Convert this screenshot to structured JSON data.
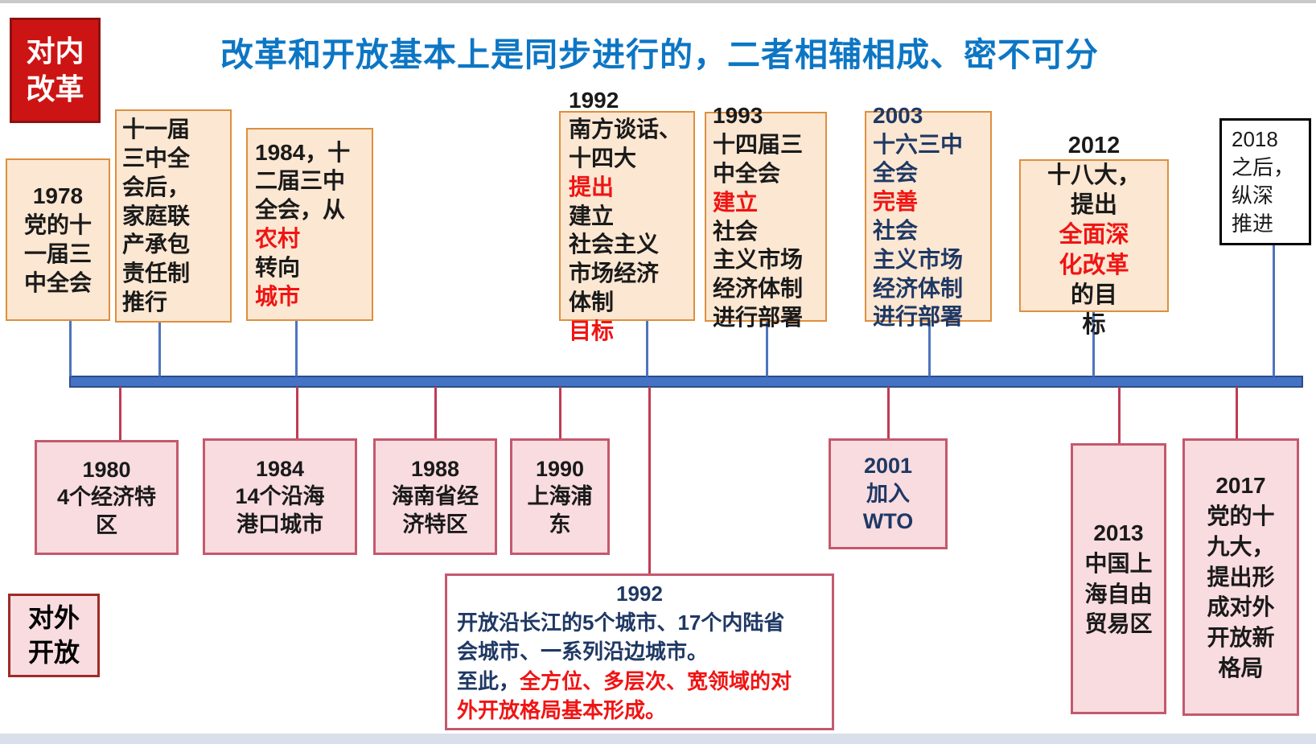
{
  "header": {
    "internal_reform_label": "对内\n改革",
    "external_opening_label": "对外\n开放",
    "title": "改革和开放基本上是同步进行的，二者相辅相成、密不可分"
  },
  "colors": {
    "title_blue": "#0d76c4",
    "highlight_red": "#f01414",
    "navy_text": "#1f3864",
    "timeline_bar": "#4472c4",
    "upper_box_fill": "#fbe7d2",
    "upper_box_border": "#de8f3e",
    "lower_box_fill": "#f8dce0",
    "lower_box_border": "#c4596d"
  },
  "timeline": {
    "upper": {
      "event_1978": {
        "segments": [
          {
            "t": "1978\n党的十\n一届三\n中全会"
          }
        ]
      },
      "event_plenum_aftermath": {
        "segments": [
          {
            "t": "十一届\n三中全\n会后，\n家庭联\n产承包\n责任制\n推行"
          }
        ]
      },
      "event_1984": {
        "segments": [
          {
            "t": "1984，十\n二届三中\n全会，从\n"
          },
          {
            "t": "农村",
            "c": "red"
          },
          {
            "t": "转向\n"
          },
          {
            "t": "城市",
            "c": "red"
          }
        ]
      },
      "event_1992": {
        "segments": [
          {
            "t": "1992\n南方谈话、\n十四大\n"
          },
          {
            "t": "提出",
            "c": "red"
          },
          {
            "t": "建立\n社会主义\n市场经济\n体制"
          },
          {
            "t": "目标",
            "c": "red"
          }
        ]
      },
      "event_1993": {
        "segments": [
          {
            "t": "1993\n十四届三\n中全会\n"
          },
          {
            "t": "建立",
            "c": "red"
          },
          {
            "t": "社会\n主义市场\n经济体制\n进行部署"
          }
        ]
      },
      "event_2003": {
        "segments": [
          {
            "t": "2003\n十六三中\n全会\n",
            "c": "navy"
          },
          {
            "t": "完善",
            "c": "red"
          },
          {
            "t": "社会\n主义市场\n经济体制\n进行部署",
            "c": "navy"
          }
        ]
      },
      "event_2012": {
        "segments": [
          {
            "t": "2012\n十八大，\n提出"
          },
          {
            "t": "全面深\n化改革",
            "c": "red"
          },
          {
            "t": "的目\n标"
          }
        ]
      },
      "event_2018": {
        "segments": [
          {
            "t": "2018\n之后，\n纵深\n推进"
          }
        ]
      }
    },
    "lower": {
      "event_1980": {
        "segments": [
          {
            "t": "1980\n4个经济特\n区"
          }
        ]
      },
      "event_1984": {
        "segments": [
          {
            "t": "1984\n14个沿海\n港口城市"
          }
        ]
      },
      "event_1988": {
        "segments": [
          {
            "t": "1988\n海南省经\n济特区"
          }
        ]
      },
      "event_1990": {
        "segments": [
          {
            "t": "1990\n上海浦\n东"
          }
        ]
      },
      "event_2001": {
        "segments": [
          {
            "t": "2001\n加入\nWTO",
            "c": "navy"
          }
        ]
      },
      "event_1992": {
        "year": "1992",
        "segments": [
          {
            "t": "开放沿长江的5个城市、17个内陆省\n会城市、一系列沿边城市。\n至此，",
            "c": "navy"
          },
          {
            "t": "全方位、多层次、宽领域的对\n外开放格局基本形成。",
            "c": "red"
          }
        ]
      },
      "event_2013": {
        "segments": [
          {
            "t": "2013\n中国上\n海自由\n贸易区"
          }
        ]
      },
      "event_2017": {
        "segments": [
          {
            "t": "2017\n党的十\n九大，\n提出形\n成对外\n开放新\n格局"
          }
        ]
      }
    }
  }
}
